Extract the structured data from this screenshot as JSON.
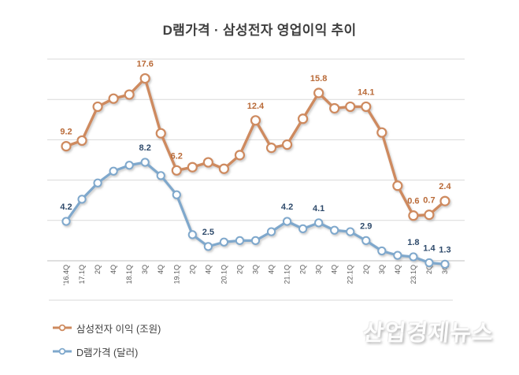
{
  "title": "D램가격 · 삼성전자 영업이익 추이",
  "watermark": "산업경제뉴스",
  "legend": {
    "items": [
      {
        "key": "samsung",
        "label": "삼성전자 이익 (조원)",
        "color": "#CE8A5E"
      },
      {
        "key": "dram",
        "label": "D램가격 (달러)",
        "color": "#7FA8CC"
      }
    ]
  },
  "chart_data": {
    "type": "line",
    "categories": [
      "'16.4Q",
      "17.1Q",
      "2Q",
      "4Q",
      "18.1Q",
      "3Q",
      "4Q",
      "19.1Q",
      "2Q",
      "4Q",
      "20.1Q",
      "2Q",
      "3Q",
      "4Q",
      "21.1Q",
      "2Q",
      "3Q",
      "4Q",
      "22.1Q",
      "2Q",
      "3Q",
      "4Q",
      "23.1Q",
      "2Q",
      "3Q"
    ],
    "series": [
      {
        "key": "samsung",
        "name": "삼성전자 이익 (조원)",
        "color": "#CE8A5E",
        "label_color": "#B96A38",
        "values": [
          9.2,
          9.9,
          14.1,
          15.1,
          15.6,
          17.6,
          10.8,
          6.2,
          6.6,
          7.2,
          6.4,
          8.1,
          12.4,
          9.0,
          9.4,
          12.6,
          15.8,
          13.9,
          14.1,
          14.1,
          10.9,
          4.3,
          0.6,
          0.7,
          2.4
        ],
        "data_labels": [
          {
            "index": 0,
            "text": "9.2"
          },
          {
            "index": 5,
            "text": "17.6"
          },
          {
            "index": 7,
            "text": "6.2"
          },
          {
            "index": 12,
            "text": "12.4"
          },
          {
            "index": 16,
            "text": "15.8"
          },
          {
            "index": 19,
            "text": "14.1"
          },
          {
            "index": 22,
            "text": "0.6"
          },
          {
            "index": 23,
            "text": "0.7"
          },
          {
            "index": 24,
            "text": "2.4"
          }
        ]
      },
      {
        "key": "dram",
        "name": "D램가격 (달러)",
        "color": "#7FA8CC",
        "label_color": "#2E4A6B",
        "values": [
          4.2,
          5.7,
          6.8,
          7.6,
          8.0,
          8.2,
          7.3,
          6.0,
          3.3,
          2.5,
          2.8,
          2.9,
          2.9,
          3.5,
          4.2,
          3.7,
          4.1,
          3.6,
          3.5,
          2.9,
          2.2,
          1.9,
          1.8,
          1.4,
          1.3
        ],
        "data_labels": [
          {
            "index": 0,
            "text": "4.2"
          },
          {
            "index": 5,
            "text": "8.2"
          },
          {
            "index": 9,
            "text": "2.5"
          },
          {
            "index": 14,
            "text": "4.2"
          },
          {
            "index": 16,
            "text": "4.1"
          },
          {
            "index": 19,
            "text": "2.9"
          },
          {
            "index": 22,
            "text": "1.8"
          },
          {
            "index": 23,
            "text": "1.4"
          },
          {
            "index": 24,
            "text": "1.3"
          }
        ]
      }
    ],
    "ylim_left": [
      -5,
      20
    ],
    "grid": true,
    "x_labels_rotated": true,
    "axis_tick_labels_visible": false,
    "legend_position": "bottom-left"
  }
}
